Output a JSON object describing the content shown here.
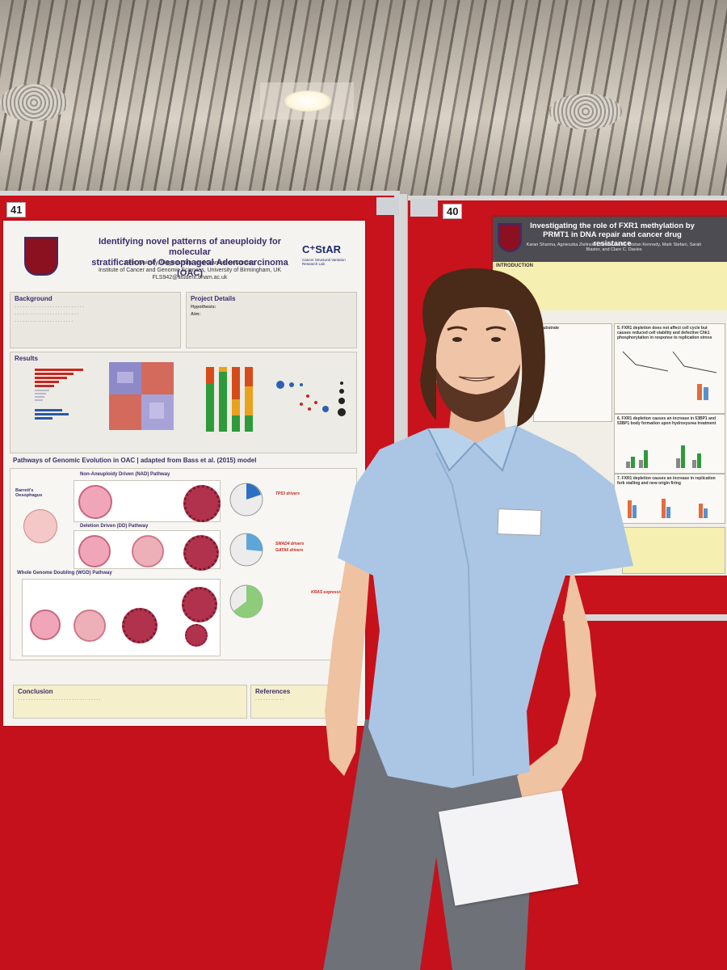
{
  "boards": {
    "left_number": "41",
    "right_number": "40"
  },
  "poster_left": {
    "title_line1": "Identifying novel patterns of aneuploidy for molecular",
    "title_line2": "stratification of Oesophageal Adenocarcinoma (OAC)",
    "authors": "Felix Swirsky, Magnus Yap, and Gianmarco Contino",
    "institute": "Institute of Cancer and Genomic Sciences, University of Birmingham, UK",
    "email": "FLS942@student.bham.ac.uk",
    "logo": "C⁺StAR",
    "logo_sub": "Cancer Structural Variation Research Lab",
    "background_heading": "Background",
    "project_heading": "Project Details",
    "hypothesis_label": "Hypothesis:",
    "aim_label": "Aim:",
    "results_heading": "Results",
    "pathways_heading": "Pathways of Genomic Evolution in OAC | adapted from Bass et al. (2015) model",
    "nad_label": "Non-Aneuploidy Driven (NAD) Pathway",
    "dd_label": "Deletion Driven (DD) Pathway",
    "wgd_label": "Whole Genome Doubling (WGD) Pathway",
    "barrett_label": "Barrett's Oesophagus",
    "conclusion_heading": "Conclusion",
    "references_heading": "References",
    "gene_list_1": "TP53 drivers",
    "gene_list_2": "SMAD4 drivers",
    "gene_list_3": "GATA6 drivers",
    "gene_list_4": "KRAS expression"
  },
  "poster_right": {
    "title_line1": "Investigating the role of FXR1 methylation by",
    "title_line2": "PRMT1 in DNA repair and cancer drug resistance",
    "authors": "Karan Sharma, Agnieszka Zielinska, James Jerold, Tristan Kennedy, Mark Stefani, Sarah Blaster, and Clare C. Davies",
    "intro_heading": "INTRODUCTION",
    "panel_4_label": "4. substrate",
    "panel_5_label": "5. FXR1 depletion does not affect cell cycle but causes reduced cell viability and defective Chk1 phosphorylation in response to replication stress",
    "panel_6_label": "6. FXR1 depletion causes an increase in 53BP1 and 53BP1 body formation upon hydroxyurea treatment",
    "panel_7_label": "7. FXR1 depletion causes an increase in replication fork stalling and new origin firing",
    "colors": {
      "header": "#4c4c52",
      "intro": "#f6efb2"
    }
  },
  "scene_colors": {
    "board": "#c8121c",
    "shirt": "#aac6e4",
    "trousers": "#6e7178",
    "hair": "#4a2a18"
  }
}
